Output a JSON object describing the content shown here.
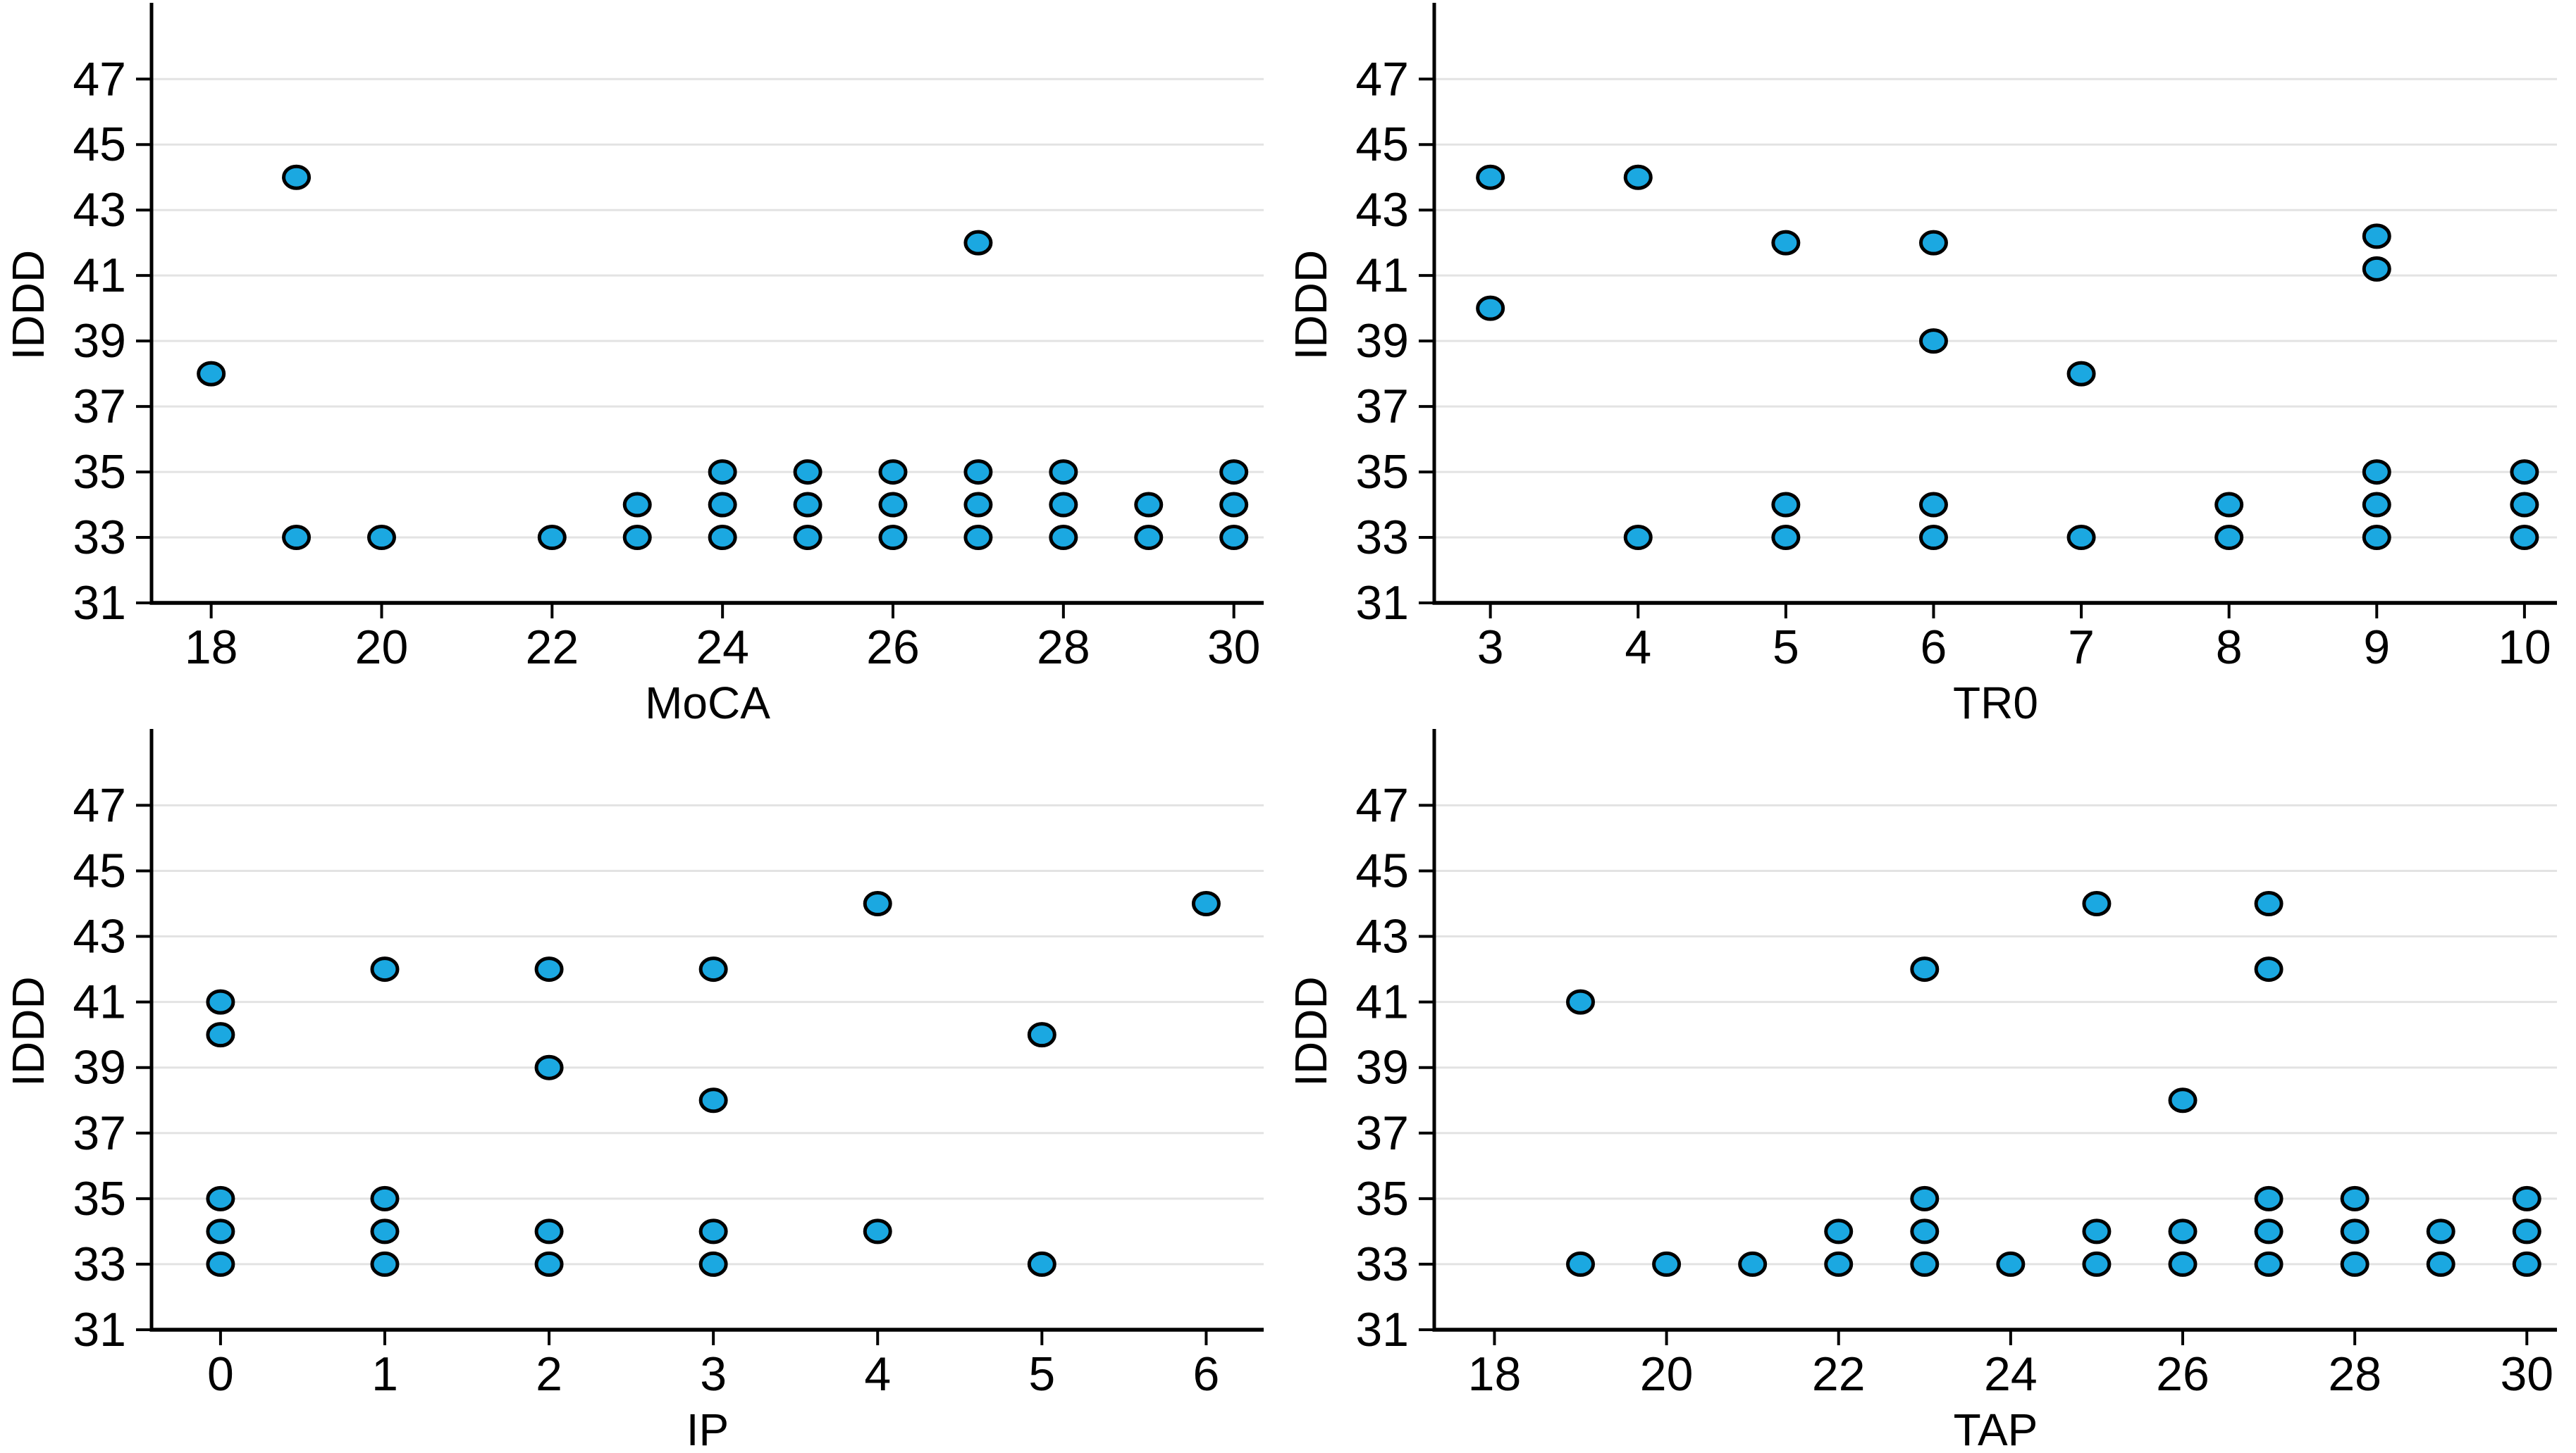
{
  "figure": {
    "background": "#ffffff",
    "description": "2x2 grid of scatter plots of IDDD versus four cognitive measures"
  },
  "style": {
    "marker_fill": "#1ba8e1",
    "marker_stroke": "#000000",
    "grid_color": "#e3e3e3",
    "axis_color": "#000000",
    "text_color": "#000000"
  },
  "chart_data": [
    {
      "type": "scatter",
      "title": "",
      "xlabel": "MoCA",
      "ylabel": "IDDD",
      "xlim": [
        17.3,
        30.35
      ],
      "ylim": [
        31,
        49.2
      ],
      "xticks": [
        18,
        20,
        22,
        24,
        26,
        28,
        30
      ],
      "yticks": [
        31,
        33,
        35,
        37,
        39,
        41,
        43,
        45,
        47
      ],
      "grid": "horizontal",
      "legend": "none",
      "points": [
        [
          18,
          38
        ],
        [
          19,
          44
        ],
        [
          19,
          33
        ],
        [
          20,
          33
        ],
        [
          22,
          33
        ],
        [
          23,
          34
        ],
        [
          23,
          33
        ],
        [
          24,
          35
        ],
        [
          24,
          34
        ],
        [
          24,
          33
        ],
        [
          25,
          35
        ],
        [
          25,
          34
        ],
        [
          25,
          33
        ],
        [
          26,
          35
        ],
        [
          26,
          34
        ],
        [
          26,
          33
        ],
        [
          27,
          42
        ],
        [
          27,
          35
        ],
        [
          27,
          34
        ],
        [
          27,
          33
        ],
        [
          28,
          35
        ],
        [
          28,
          34
        ],
        [
          28,
          33
        ],
        [
          29,
          34
        ],
        [
          29,
          33
        ],
        [
          30,
          35
        ],
        [
          30,
          34
        ],
        [
          30,
          33
        ]
      ]
    },
    {
      "type": "scatter",
      "title": "",
      "xlabel": "TR0",
      "ylabel": "IDDD",
      "xlim": [
        2.62,
        10.22
      ],
      "ylim": [
        31,
        49.2
      ],
      "xticks": [
        3,
        4,
        5,
        6,
        7,
        8,
        9,
        10
      ],
      "yticks": [
        31,
        33,
        35,
        37,
        39,
        41,
        43,
        45,
        47
      ],
      "grid": "horizontal",
      "legend": "none",
      "points": [
        [
          3,
          44
        ],
        [
          3,
          40
        ],
        [
          4,
          44
        ],
        [
          4,
          33
        ],
        [
          5,
          42
        ],
        [
          5,
          34
        ],
        [
          5,
          33
        ],
        [
          6,
          42
        ],
        [
          6,
          39
        ],
        [
          6,
          34
        ],
        [
          6,
          33
        ],
        [
          7,
          38
        ],
        [
          7,
          33
        ],
        [
          8,
          34
        ],
        [
          8,
          33
        ],
        [
          9,
          42.2
        ],
        [
          9,
          41.2
        ],
        [
          9,
          35
        ],
        [
          9,
          34
        ],
        [
          9,
          33
        ],
        [
          10,
          35
        ],
        [
          10,
          34
        ],
        [
          10,
          33
        ]
      ]
    },
    {
      "type": "scatter",
      "title": "",
      "xlabel": "IP",
      "ylabel": "IDDD",
      "xlim": [
        -0.42,
        6.35
      ],
      "ylim": [
        31,
        49.2
      ],
      "xticks": [
        0,
        1,
        2,
        3,
        4,
        5,
        6
      ],
      "yticks": [
        31,
        33,
        35,
        37,
        39,
        41,
        43,
        45,
        47
      ],
      "grid": "horizontal",
      "legend": "none",
      "points": [
        [
          0,
          41
        ],
        [
          0,
          40
        ],
        [
          0,
          35
        ],
        [
          0,
          34
        ],
        [
          0,
          33
        ],
        [
          1,
          42
        ],
        [
          1,
          35
        ],
        [
          1,
          34
        ],
        [
          1,
          33
        ],
        [
          2,
          42
        ],
        [
          2,
          39
        ],
        [
          2,
          34
        ],
        [
          2,
          33
        ],
        [
          3,
          42
        ],
        [
          3,
          38
        ],
        [
          3,
          34
        ],
        [
          3,
          33
        ],
        [
          4,
          44
        ],
        [
          4,
          34
        ],
        [
          5,
          40
        ],
        [
          5,
          33
        ],
        [
          6,
          44
        ]
      ]
    },
    {
      "type": "scatter",
      "title": "",
      "xlabel": "TAP",
      "ylabel": "IDDD",
      "xlim": [
        17.3,
        30.35
      ],
      "ylim": [
        31,
        49.2
      ],
      "xticks": [
        18,
        20,
        22,
        24,
        26,
        28,
        30
      ],
      "yticks": [
        31,
        33,
        35,
        37,
        39,
        41,
        43,
        45,
        47
      ],
      "grid": "horizontal",
      "legend": "none",
      "points": [
        [
          19,
          41
        ],
        [
          19,
          33
        ],
        [
          20,
          33
        ],
        [
          21,
          33
        ],
        [
          22,
          34
        ],
        [
          22,
          33
        ],
        [
          23,
          42
        ],
        [
          23,
          35
        ],
        [
          23,
          34
        ],
        [
          23,
          33
        ],
        [
          24,
          33
        ],
        [
          25,
          44
        ],
        [
          25,
          34
        ],
        [
          25,
          33
        ],
        [
          26,
          38
        ],
        [
          26,
          34
        ],
        [
          26,
          33
        ],
        [
          27,
          44
        ],
        [
          27,
          42
        ],
        [
          27,
          35
        ],
        [
          27,
          34
        ],
        [
          27,
          33
        ],
        [
          28,
          35
        ],
        [
          28,
          34
        ],
        [
          28,
          33
        ],
        [
          29,
          34
        ],
        [
          29,
          33
        ],
        [
          30,
          35
        ],
        [
          30,
          34
        ],
        [
          30,
          33
        ]
      ]
    }
  ]
}
